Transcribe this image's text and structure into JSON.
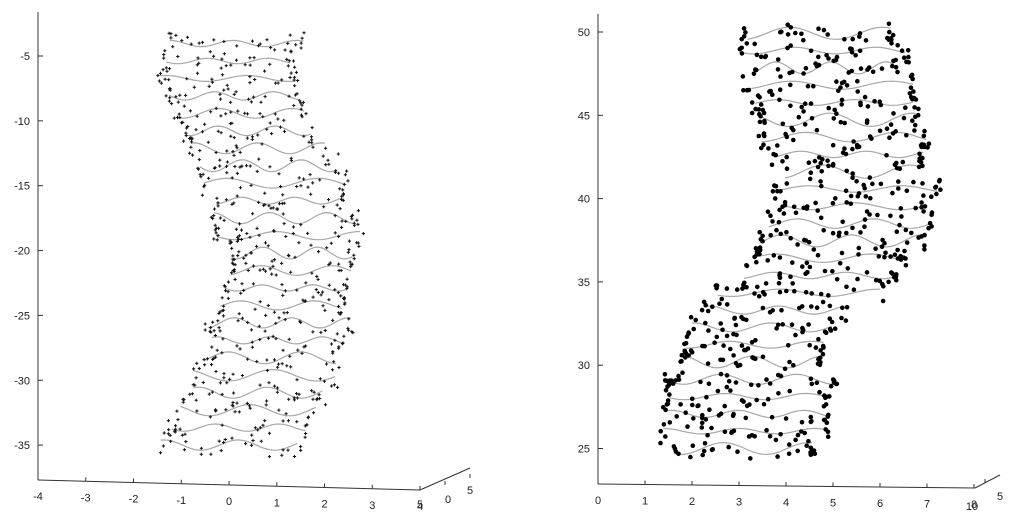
{
  "chart_data": [
    {
      "type": "scatter",
      "title": "",
      "xlabel": "",
      "ylabel": "",
      "xlim": [
        -4,
        4
      ],
      "ylim": [
        -37,
        -2
      ],
      "grid": false,
      "xticks": [
        -4,
        -3,
        -2,
        -1,
        0,
        1,
        2,
        3,
        4
      ],
      "yticks": [
        -5,
        -10,
        -15,
        -20,
        -25,
        -30,
        -35
      ],
      "depth_ticks": [
        "5",
        "0",
        "5"
      ],
      "series": [
        {
          "marker_color": "#111111",
          "line_color": "#a8a8a8",
          "centerline": [
            {
              "y": -3,
              "x": 0.3
            },
            {
              "y": -6,
              "x": -0.1
            },
            {
              "y": -10,
              "x": 0.3
            },
            {
              "y": -14,
              "x": 0.9
            },
            {
              "y": -18,
              "x": 1.2
            },
            {
              "y": -21,
              "x": 1.35
            },
            {
              "y": -24,
              "x": 1.1
            },
            {
              "y": -27,
              "x": 1.0
            },
            {
              "y": -31,
              "x": 0.6
            },
            {
              "y": -35,
              "x": 0.0
            }
          ],
          "width_range": [
            2.5,
            3.0
          ]
        }
      ]
    },
    {
      "type": "scatter",
      "title": "",
      "xlabel": "",
      "ylabel": "",
      "xlim": [
        0,
        8
      ],
      "ylim": [
        24,
        51
      ],
      "grid": false,
      "xticks": [
        0,
        1,
        2,
        3,
        4,
        5,
        6,
        7,
        8
      ],
      "yticks": [
        25,
        30,
        35,
        40,
        45,
        50
      ],
      "depth_ticks": [
        "10",
        "5"
      ],
      "series": [
        {
          "marker_color": "#000000",
          "line_color": "#a8a8a8",
          "centerline": [
            {
              "y": 25,
              "x": 3.1
            },
            {
              "y": 28,
              "x": 3.2
            },
            {
              "y": 31,
              "x": 3.3
            },
            {
              "y": 33,
              "x": 3.6
            },
            {
              "y": 35,
              "x": 4.6
            },
            {
              "y": 38,
              "x": 5.3
            },
            {
              "y": 41,
              "x": 5.5
            },
            {
              "y": 44,
              "x": 5.2
            },
            {
              "y": 47,
              "x": 4.9
            },
            {
              "y": 50,
              "x": 4.7
            }
          ],
          "width_range": [
            2.9,
            3.6
          ]
        }
      ]
    }
  ]
}
